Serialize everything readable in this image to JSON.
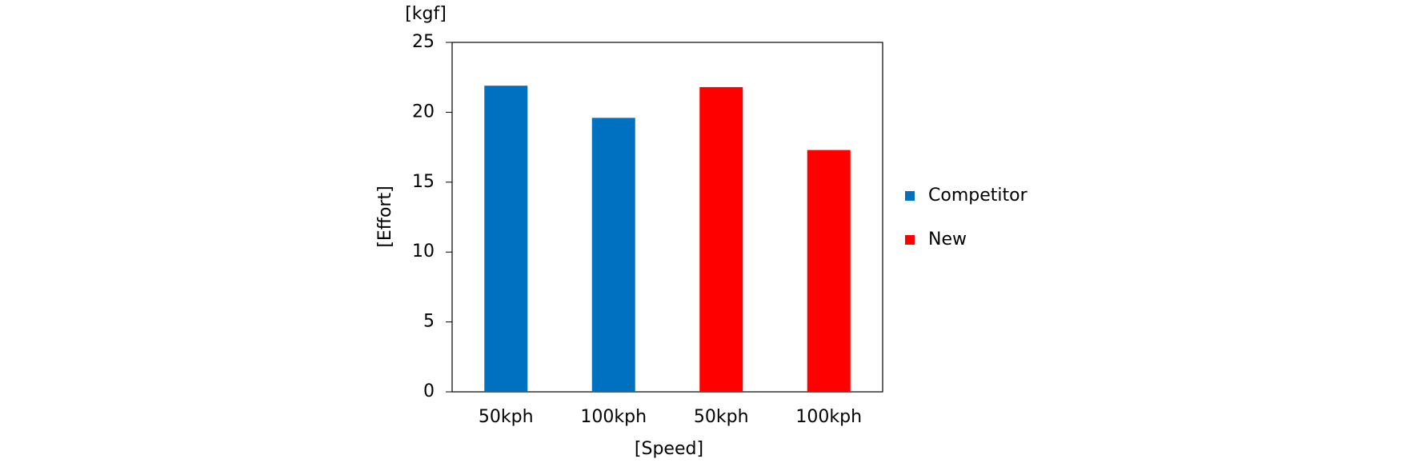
{
  "chart_data": {
    "type": "bar",
    "unit_label": "[kgf]",
    "y_label": "[Effort]",
    "x_label": "[Speed]",
    "categories": [
      "50kph",
      "100kph",
      "50kph",
      "100kph"
    ],
    "series": [
      {
        "name": "Competitor",
        "color": "#0070c0",
        "values": [
          21.9,
          19.6,
          null,
          null
        ]
      },
      {
        "name": "New",
        "color": "#ff0000",
        "values": [
          null,
          null,
          21.8,
          17.3
        ]
      }
    ],
    "ylim": [
      0,
      25
    ],
    "yticks": [
      0,
      5,
      10,
      15,
      20,
      25
    ],
    "grid": false,
    "legend": "right"
  }
}
